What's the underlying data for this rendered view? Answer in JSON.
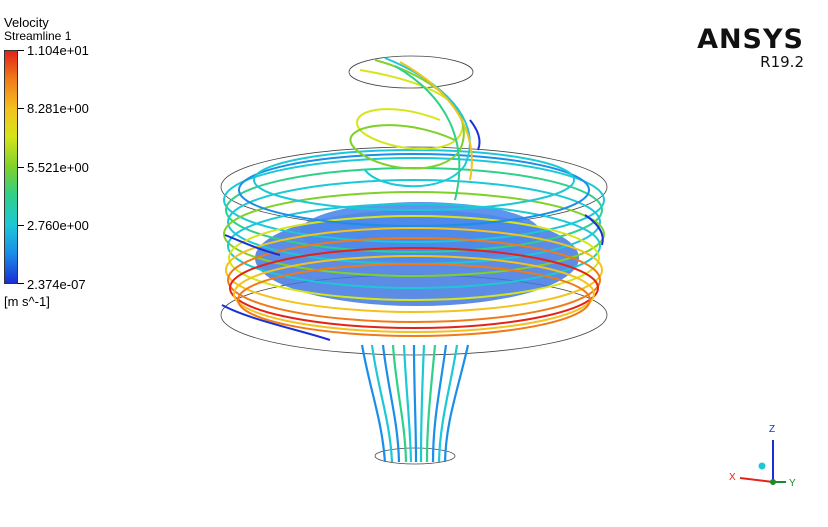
{
  "legend": {
    "title": "Velocity",
    "subtitle": "Streamline 1",
    "ticks": [
      "1.104e+01",
      "8.281e+00",
      "5.521e+00",
      "2.760e+00",
      "2.374e-07"
    ],
    "units": "[m s^-1]"
  },
  "brand": {
    "name": "ANSYS",
    "version": "R19.2"
  },
  "triad": {
    "x": "X",
    "y": "Y",
    "z": "Z"
  },
  "colors": {
    "max": "#e2231a",
    "high": "#f3c21c",
    "mid": "#7fd12a",
    "low": "#1cc8d6",
    "min": "#1a2fd6",
    "body": "#3b6fd6"
  }
}
